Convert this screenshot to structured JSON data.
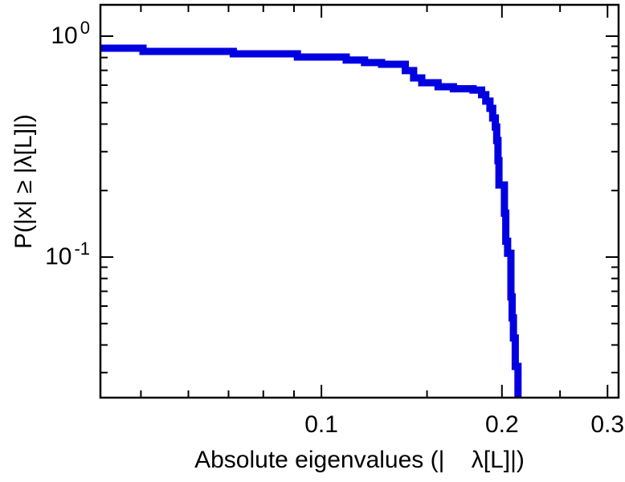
{
  "chart_data": {
    "type": "line",
    "style": "step-ccdf",
    "title": "",
    "xlabel": "Absolute eigenvalues (|    λ[L]|)",
    "ylabel": "P(|x| ≥ |λ[L]|)",
    "xscale": "log",
    "yscale": "log",
    "xlim": [
      0.0428,
      0.313
    ],
    "ylim": [
      0.0231,
      1.386
    ],
    "grid": false,
    "legend": "none",
    "line_color": "#0000e0",
    "line_width": 9,
    "axis_color": "#000000",
    "x_ticks": [
      {
        "value": 0.1,
        "label": "0.1"
      },
      {
        "value": 0.2,
        "label": "0.2"
      },
      {
        "value": 0.3,
        "label": "0.3"
      }
    ],
    "x_minor_ticks": [
      0.05,
      0.06,
      0.07,
      0.08,
      0.09,
      0.15,
      0.25
    ],
    "y_ticks": [
      {
        "value": 1.0,
        "base": "10",
        "exp": "0"
      },
      {
        "value": 0.1,
        "base": "10",
        "exp": "-1"
      }
    ],
    "y_minor_ticks": [
      0.9,
      0.8,
      0.7,
      0.6,
      0.5,
      0.4,
      0.3,
      0.2,
      0.09,
      0.08,
      0.07,
      0.06,
      0.05,
      0.04,
      0.03
    ],
    "points": [
      [
        0.0428,
        0.882
      ],
      [
        0.0504,
        0.853
      ],
      [
        0.0713,
        0.832
      ],
      [
        0.0912,
        0.804
      ],
      [
        0.11,
        0.78
      ],
      [
        0.118,
        0.759
      ],
      [
        0.126,
        0.746
      ],
      [
        0.138,
        0.698
      ],
      [
        0.1425,
        0.647
      ],
      [
        0.147,
        0.615
      ],
      [
        0.1565,
        0.59
      ],
      [
        0.166,
        0.578
      ],
      [
        0.179,
        0.57
      ],
      [
        0.185,
        0.543
      ],
      [
        0.188,
        0.508
      ],
      [
        0.191,
        0.471
      ],
      [
        0.193,
        0.426
      ],
      [
        0.195,
        0.388
      ],
      [
        0.196,
        0.337
      ],
      [
        0.197,
        0.273
      ],
      [
        0.1977,
        0.212
      ],
      [
        0.2019,
        0.158
      ],
      [
        0.203,
        0.118
      ],
      [
        0.2044,
        0.104
      ],
      [
        0.207,
        0.066
      ],
      [
        0.208,
        0.053
      ],
      [
        0.209,
        0.043
      ],
      [
        0.2105,
        0.032
      ],
      [
        0.2127,
        0.01
      ]
    ]
  }
}
